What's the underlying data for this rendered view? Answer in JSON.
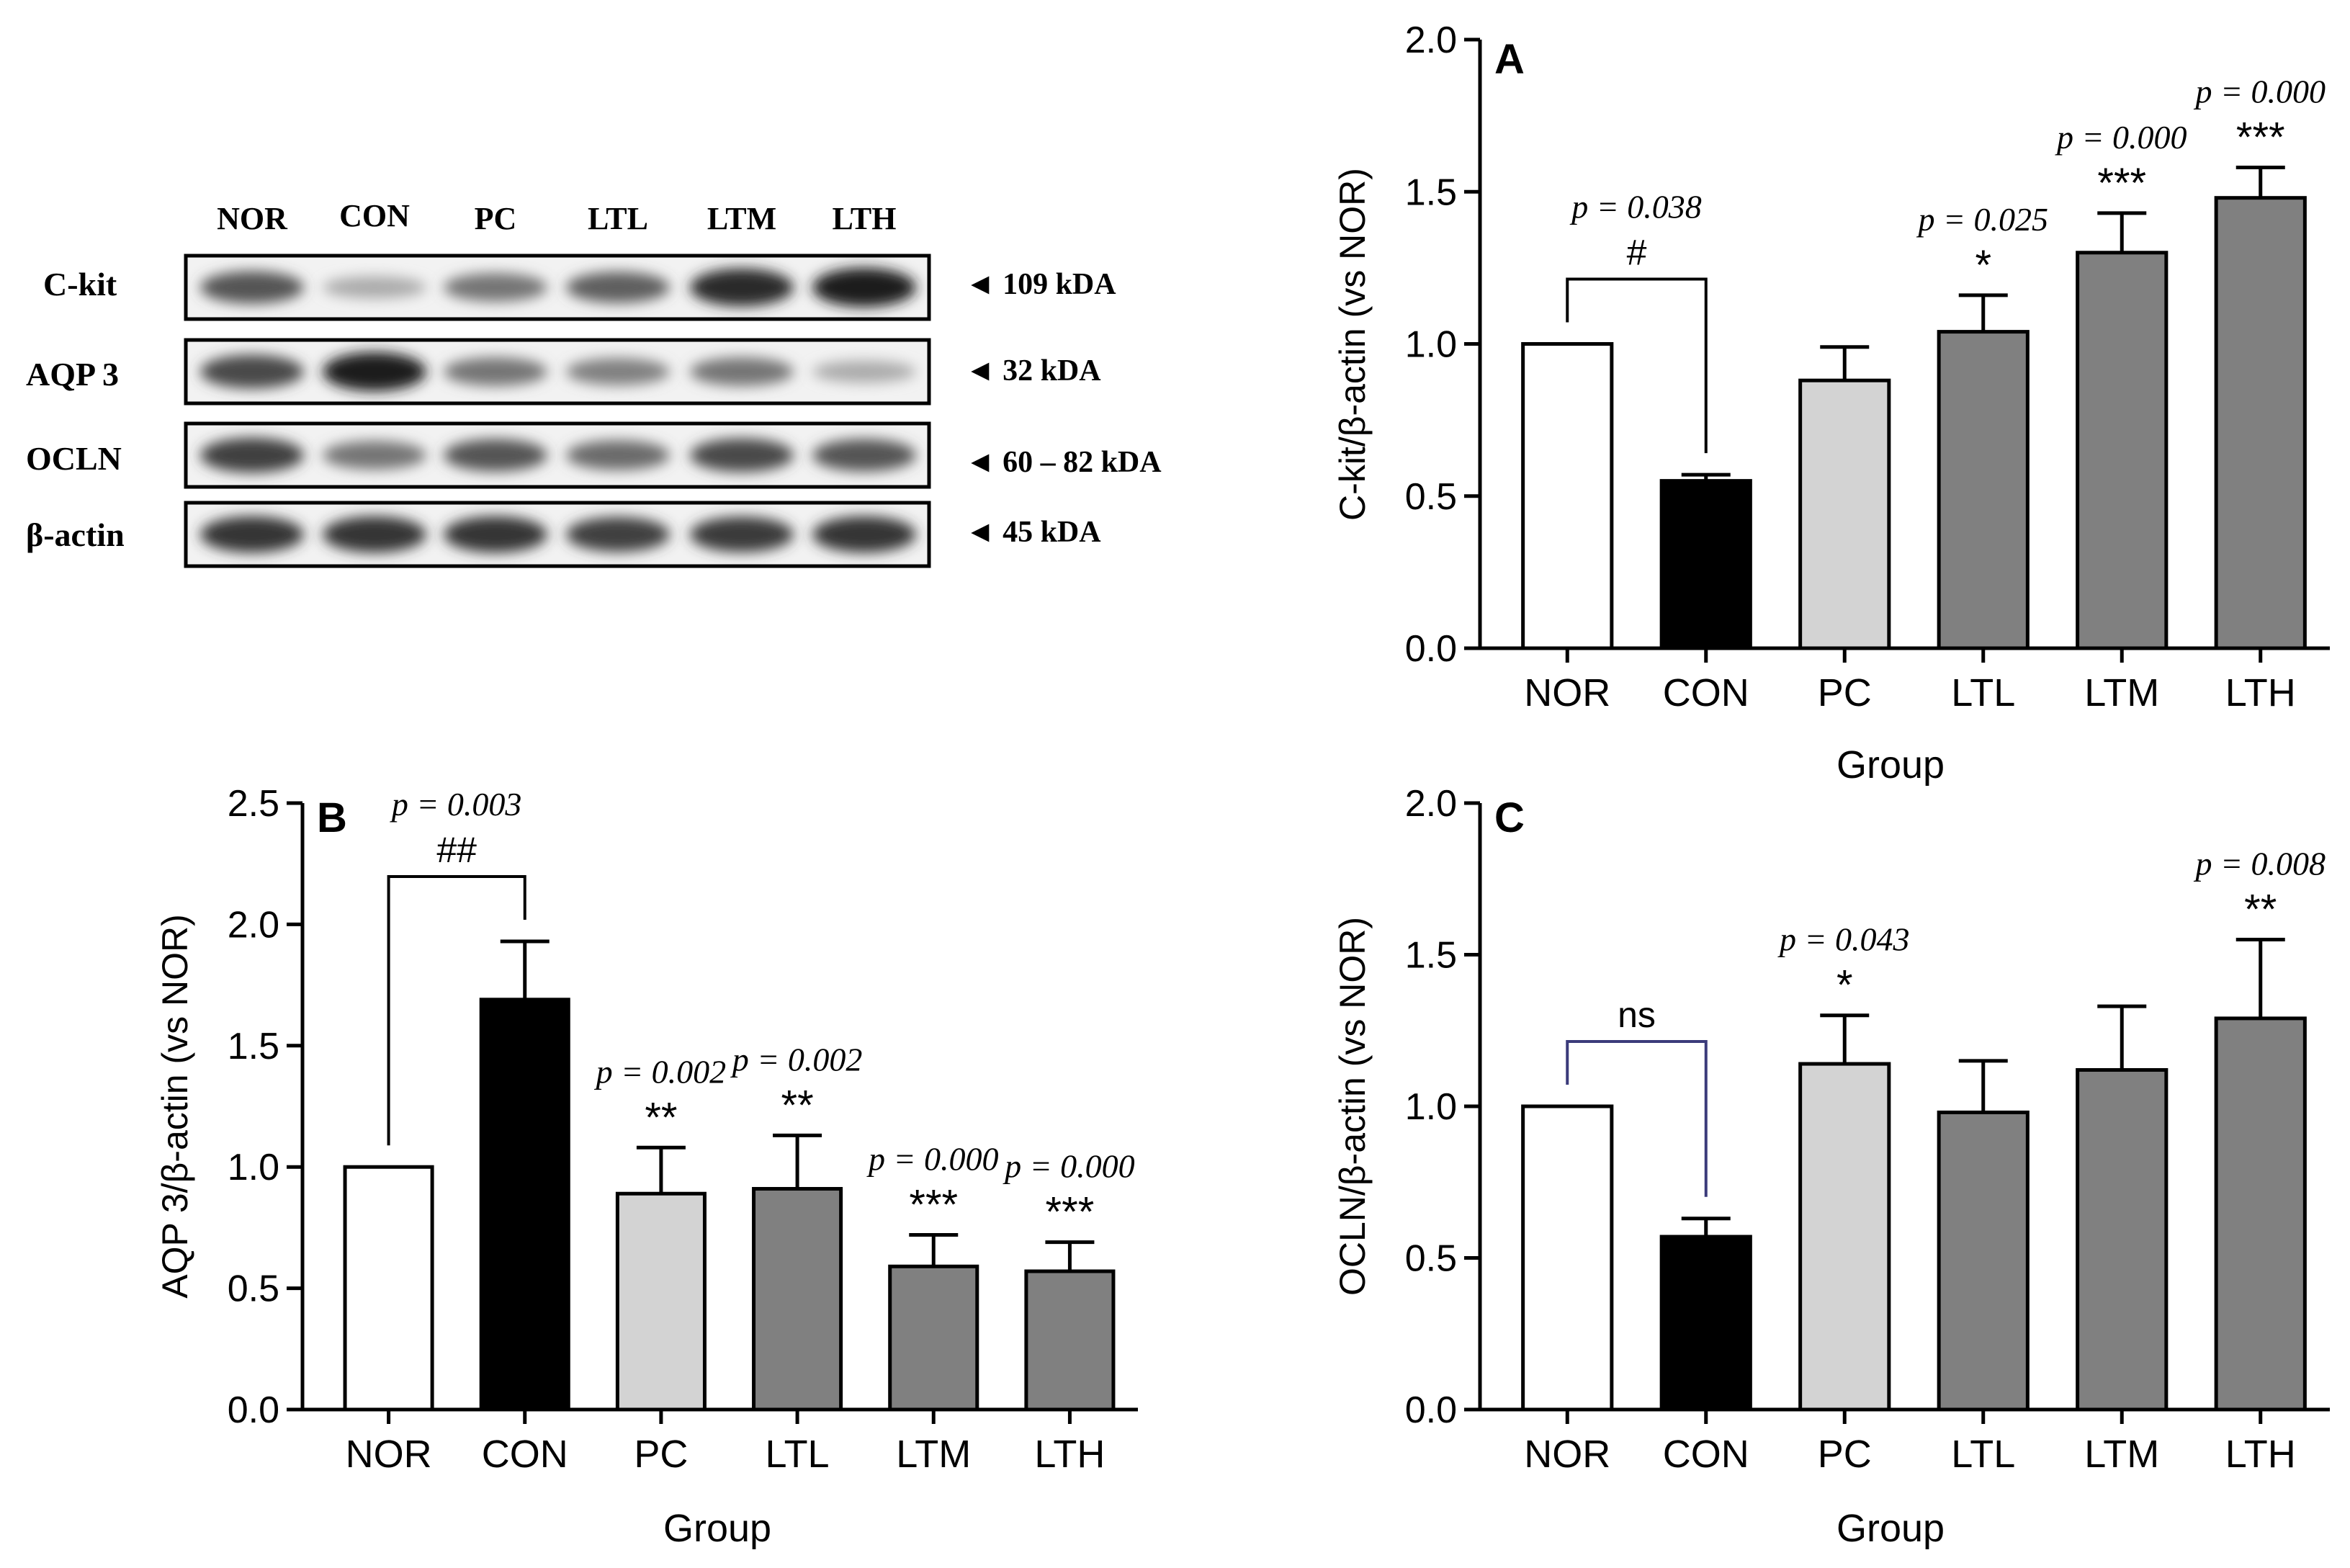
{
  "western_blot": {
    "lanes": [
      "NOR",
      "CON",
      "PC",
      "LTL",
      "LTM",
      "LTH"
    ],
    "rows": [
      {
        "protein": "C-kit",
        "size": "◄ 109 kDA",
        "intensity": [
          0.7,
          0.3,
          0.55,
          0.65,
          0.9,
          0.95
        ]
      },
      {
        "protein": "AQP 3",
        "size": "◄ 32 kDA",
        "intensity": [
          0.75,
          0.95,
          0.55,
          0.5,
          0.55,
          0.3
        ]
      },
      {
        "protein": "OCLN",
        "size": "◄ 60 – 82 kDA",
        "intensity": [
          0.8,
          0.55,
          0.7,
          0.6,
          0.75,
          0.7
        ]
      },
      {
        "protein": "β-actin",
        "size": "◄ 45 kDA",
        "intensity": [
          0.85,
          0.85,
          0.85,
          0.8,
          0.82,
          0.85
        ]
      }
    ]
  },
  "chart_data": [
    {
      "id": "A",
      "panel_label": "A",
      "type": "bar",
      "xlabel": "Group",
      "ylabel": "C-kit/β-actin (vs NOR)",
      "ylim": [
        0,
        2.0
      ],
      "yticks": [
        0.0,
        0.5,
        1.0,
        1.5,
        2.0
      ],
      "ytick_labels": [
        "0.0",
        "0.5",
        "1.0",
        "1.5",
        "2.0"
      ],
      "categories": [
        "NOR",
        "CON",
        "PC",
        "LTL",
        "LTM",
        "LTH"
      ],
      "values": [
        1.0,
        0.55,
        0.88,
        1.04,
        1.3,
        1.48
      ],
      "errors": [
        0.0,
        0.02,
        0.11,
        0.12,
        0.13,
        0.1
      ],
      "colors": [
        "#ffffff",
        "#000000",
        "#d3d3d3",
        "#808080",
        "#808080",
        "#808080"
      ],
      "stars": [
        {
          "category": "LTL",
          "stars": "*",
          "p": "p = 0.025"
        },
        {
          "category": "LTM",
          "stars": "***",
          "p": "p = 0.000"
        },
        {
          "category": "LTH",
          "stars": "***",
          "p": "p = 0.000"
        }
      ],
      "bracket": {
        "from": "NOR",
        "to": "CON",
        "label": "#",
        "p": "p = 0.038",
        "color": "#000000"
      }
    },
    {
      "id": "B",
      "panel_label": "B",
      "type": "bar",
      "xlabel": "Group",
      "ylabel": "AQP 3/β-actin (vs NOR)",
      "ylim": [
        0,
        2.5
      ],
      "yticks": [
        0.0,
        0.5,
        1.0,
        1.5,
        2.0,
        2.5
      ],
      "ytick_labels": [
        "0.0",
        "0.5",
        "1.0",
        "1.5",
        "2.0",
        "2.5"
      ],
      "categories": [
        "NOR",
        "CON",
        "PC",
        "LTL",
        "LTM",
        "LTH"
      ],
      "values": [
        1.0,
        1.69,
        0.89,
        0.91,
        0.59,
        0.57
      ],
      "errors": [
        0.0,
        0.24,
        0.19,
        0.22,
        0.13,
        0.12
      ],
      "colors": [
        "#ffffff",
        "#000000",
        "#d3d3d3",
        "#808080",
        "#808080",
        "#808080"
      ],
      "stars": [
        {
          "category": "PC",
          "stars": "**",
          "p": "p = 0.002"
        },
        {
          "category": "LTL",
          "stars": "**",
          "p": "p = 0.002"
        },
        {
          "category": "LTM",
          "stars": "***",
          "p": "p = 0.000"
        },
        {
          "category": "LTH",
          "stars": "***",
          "p": "p = 0.000"
        }
      ],
      "bracket": {
        "from": "NOR",
        "to": "CON",
        "label": "##",
        "p": "p = 0.003",
        "color": "#000000"
      }
    },
    {
      "id": "C",
      "panel_label": "C",
      "type": "bar",
      "xlabel": "Group",
      "ylabel": "OCLN/β-actin (vs NOR)",
      "ylim": [
        0,
        2.0
      ],
      "yticks": [
        0.0,
        0.5,
        1.0,
        1.5,
        2.0
      ],
      "ytick_labels": [
        "0.0",
        "0.5",
        "1.0",
        "1.5",
        "2.0"
      ],
      "categories": [
        "NOR",
        "CON",
        "PC",
        "LTL",
        "LTM",
        "LTH"
      ],
      "values": [
        1.0,
        0.57,
        1.14,
        0.98,
        1.12,
        1.29
      ],
      "errors": [
        0.0,
        0.06,
        0.16,
        0.17,
        0.21,
        0.26
      ],
      "colors": [
        "#ffffff",
        "#000000",
        "#d3d3d3",
        "#808080",
        "#808080",
        "#808080"
      ],
      "stars": [
        {
          "category": "PC",
          "stars": "*",
          "p": "p = 0.043"
        },
        {
          "category": "LTH",
          "stars": "**",
          "p": "p = 0.008"
        }
      ],
      "bracket": {
        "from": "NOR",
        "to": "CON",
        "label": "ns",
        "p": "",
        "color": "#3b3b7a"
      }
    }
  ]
}
